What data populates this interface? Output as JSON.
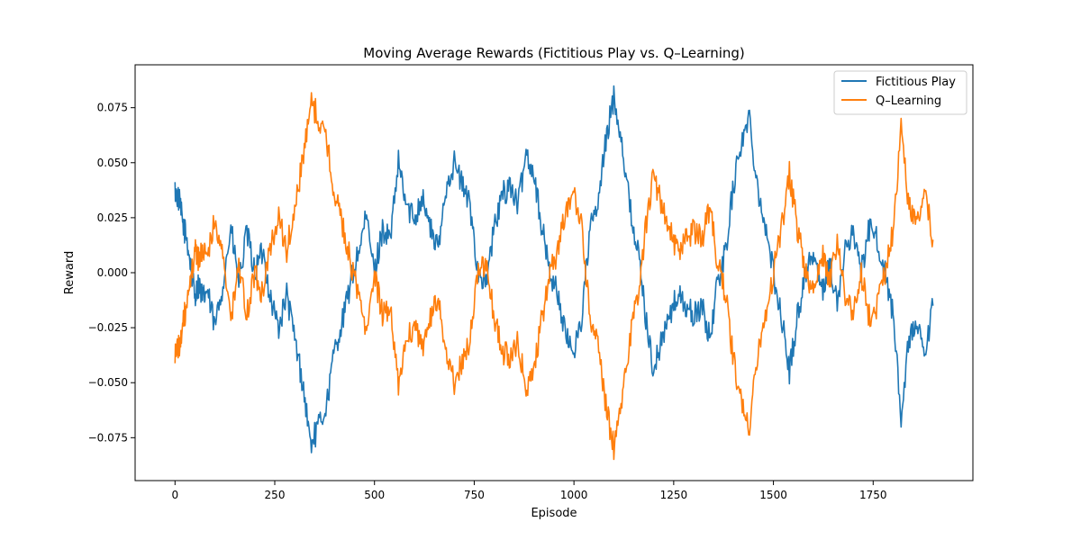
{
  "chart_data": {
    "type": "line",
    "title": "Moving Average Rewards (Fictitious Play vs. Q–Learning)",
    "xlabel": "Episode",
    "ylabel": "Reward",
    "xlim": [
      -100,
      2000
    ],
    "ylim": [
      -0.0945,
      0.0945
    ],
    "x_ticks": [
      0,
      250,
      500,
      750,
      1000,
      1250,
      1500,
      1750
    ],
    "y_ticks": [
      -0.075,
      -0.05,
      -0.025,
      0.0,
      0.025,
      0.05,
      0.075
    ],
    "x_tick_labels": [
      "0",
      "250",
      "500",
      "750",
      "1000",
      "1250",
      "1500",
      "1750"
    ],
    "y_tick_labels": [
      "−0.075",
      "−0.050",
      "−0.025",
      "0.000",
      "0.025",
      "0.050",
      "0.075"
    ],
    "grid": false,
    "legend_position": "top-right",
    "series": [
      {
        "name": "Fictitious Play",
        "color": "#1f77b4",
        "x": [
          0,
          10,
          20,
          30,
          40,
          50,
          60,
          70,
          80,
          100,
          120,
          140,
          160,
          180,
          200,
          220,
          240,
          260,
          280,
          300,
          320,
          340,
          360,
          380,
          400,
          420,
          440,
          460,
          480,
          500,
          520,
          540,
          560,
          580,
          600,
          620,
          640,
          660,
          680,
          700,
          720,
          740,
          760,
          780,
          800,
          820,
          840,
          860,
          880,
          900,
          920,
          940,
          960,
          980,
          1000,
          1020,
          1040,
          1060,
          1080,
          1100,
          1120,
          1140,
          1160,
          1180,
          1200,
          1220,
          1240,
          1260,
          1280,
          1300,
          1320,
          1340,
          1360,
          1380,
          1400,
          1420,
          1440,
          1460,
          1480,
          1500,
          1520,
          1540,
          1560,
          1580,
          1600,
          1620,
          1640,
          1660,
          1680,
          1700,
          1720,
          1740,
          1760,
          1780,
          1800,
          1820,
          1840,
          1860,
          1880,
          1900
        ],
        "values": [
          0.037,
          0.033,
          0.022,
          0.015,
          0.002,
          -0.01,
          -0.005,
          -0.012,
          -0.008,
          -0.025,
          -0.005,
          0.02,
          -0.005,
          0.018,
          0.0,
          0.01,
          -0.012,
          -0.025,
          -0.01,
          -0.03,
          -0.05,
          -0.078,
          -0.07,
          -0.06,
          -0.035,
          -0.022,
          -0.005,
          0.01,
          0.025,
          0.0,
          0.02,
          0.015,
          0.05,
          0.03,
          0.025,
          0.035,
          0.02,
          0.01,
          0.04,
          0.05,
          0.04,
          0.03,
          0.0,
          -0.005,
          0.02,
          0.035,
          0.04,
          0.03,
          0.055,
          0.045,
          0.02,
          0.0,
          -0.01,
          -0.03,
          -0.035,
          -0.02,
          0.02,
          0.03,
          0.06,
          0.08,
          0.06,
          0.03,
          0.01,
          -0.02,
          -0.045,
          -0.03,
          -0.02,
          -0.01,
          -0.015,
          -0.02,
          -0.015,
          -0.03,
          -0.005,
          0.01,
          0.04,
          0.06,
          0.07,
          0.04,
          0.02,
          0.0,
          -0.02,
          -0.045,
          -0.02,
          0.0,
          0.01,
          -0.01,
          0.005,
          -0.015,
          0.01,
          0.02,
          0.0,
          0.02,
          0.015,
          0.0,
          -0.02,
          -0.065,
          -0.03,
          -0.025,
          -0.04,
          -0.015
        ]
      },
      {
        "name": "Q–Learning",
        "color": "#ff7f0e",
        "x": [
          0,
          10,
          20,
          30,
          40,
          50,
          60,
          70,
          80,
          100,
          120,
          140,
          160,
          180,
          200,
          220,
          240,
          260,
          280,
          300,
          320,
          340,
          360,
          380,
          400,
          420,
          440,
          460,
          480,
          500,
          520,
          540,
          560,
          580,
          600,
          620,
          640,
          660,
          680,
          700,
          720,
          740,
          760,
          780,
          800,
          820,
          840,
          860,
          880,
          900,
          920,
          940,
          960,
          980,
          1000,
          1020,
          1040,
          1060,
          1080,
          1100,
          1120,
          1140,
          1160,
          1180,
          1200,
          1220,
          1240,
          1260,
          1280,
          1300,
          1320,
          1340,
          1360,
          1380,
          1400,
          1420,
          1440,
          1460,
          1480,
          1500,
          1520,
          1540,
          1560,
          1580,
          1600,
          1620,
          1640,
          1660,
          1680,
          1700,
          1720,
          1740,
          1760,
          1780,
          1800,
          1820,
          1840,
          1860,
          1880,
          1900
        ],
        "values": [
          -0.037,
          -0.033,
          -0.022,
          -0.015,
          -0.002,
          0.01,
          0.005,
          0.012,
          0.008,
          0.025,
          0.005,
          -0.02,
          0.005,
          -0.018,
          0.0,
          -0.01,
          0.012,
          0.025,
          0.01,
          0.03,
          0.05,
          0.078,
          0.07,
          0.06,
          0.035,
          0.022,
          0.005,
          -0.01,
          -0.025,
          0.0,
          -0.02,
          -0.015,
          -0.05,
          -0.03,
          -0.025,
          -0.035,
          -0.02,
          -0.01,
          -0.04,
          -0.05,
          -0.04,
          -0.03,
          0.0,
          0.005,
          -0.02,
          -0.035,
          -0.04,
          -0.03,
          -0.055,
          -0.045,
          -0.02,
          0.0,
          0.01,
          0.03,
          0.035,
          0.02,
          -0.02,
          -0.03,
          -0.06,
          -0.08,
          -0.06,
          -0.03,
          -0.01,
          0.02,
          0.045,
          0.03,
          0.02,
          0.01,
          0.015,
          0.02,
          0.015,
          0.03,
          0.005,
          -0.01,
          -0.04,
          -0.06,
          -0.07,
          -0.04,
          -0.02,
          0.0,
          0.02,
          0.045,
          0.02,
          0.0,
          -0.01,
          0.01,
          -0.005,
          0.015,
          -0.01,
          -0.02,
          0.0,
          -0.02,
          -0.015,
          0.0,
          0.02,
          0.065,
          0.03,
          0.025,
          0.04,
          0.015
        ]
      }
    ]
  }
}
